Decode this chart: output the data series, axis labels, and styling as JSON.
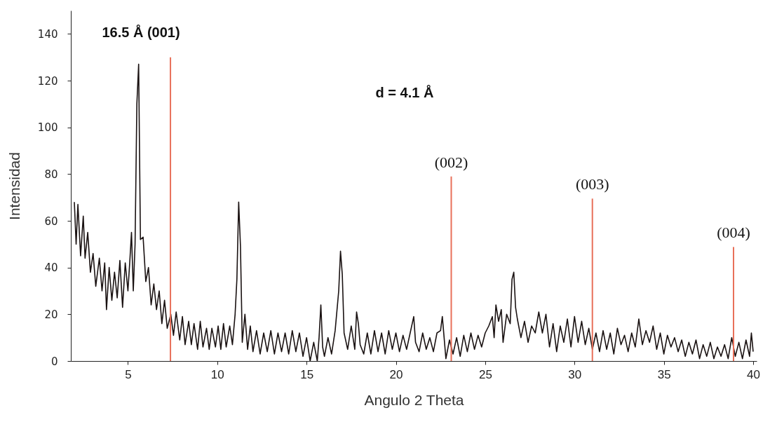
{
  "chart_data": {
    "type": "line",
    "xlabel": "Angulo 2 Theta",
    "ylabel": "Intensidad",
    "xlim": [
      2,
      40
    ],
    "xticks": [
      5,
      10,
      15,
      20,
      25,
      30,
      35,
      40
    ],
    "ylim": [
      0,
      150
    ],
    "yticks": [
      0,
      20,
      40,
      60,
      80,
      100,
      120,
      140
    ],
    "grid": false,
    "series": [
      {
        "color": "#1a1212",
        "x": [
          2.0,
          2.1,
          2.2,
          2.35,
          2.5,
          2.6,
          2.75,
          2.9,
          3.05,
          3.2,
          3.4,
          3.55,
          3.7,
          3.8,
          3.95,
          4.1,
          4.25,
          4.4,
          4.55,
          4.7,
          4.85,
          5.0,
          5.1,
          5.2,
          5.3,
          5.4,
          5.5,
          5.6,
          5.7,
          5.85,
          6.0,
          6.15,
          6.3,
          6.45,
          6.6,
          6.75,
          6.9,
          7.05,
          7.2,
          7.4,
          7.55,
          7.7,
          7.9,
          8.05,
          8.2,
          8.4,
          8.55,
          8.7,
          8.9,
          9.05,
          9.2,
          9.4,
          9.55,
          9.7,
          9.9,
          10.05,
          10.2,
          10.35,
          10.5,
          10.7,
          10.85,
          11.0,
          11.1,
          11.2,
          11.3,
          11.4,
          11.55,
          11.7,
          11.85,
          12.0,
          12.2,
          12.4,
          12.6,
          12.8,
          13.0,
          13.2,
          13.4,
          13.6,
          13.8,
          14.0,
          14.2,
          14.4,
          14.6,
          14.8,
          15.0,
          15.2,
          15.4,
          15.6,
          15.7,
          15.8,
          15.9,
          16.0,
          16.2,
          16.4,
          16.6,
          16.8,
          16.9,
          17.0,
          17.1,
          17.3,
          17.5,
          17.7,
          17.8,
          17.9,
          18.0,
          18.2,
          18.4,
          18.6,
          18.8,
          19.0,
          19.2,
          19.4,
          19.6,
          19.8,
          20.0,
          20.2,
          20.4,
          20.6,
          20.8,
          21.0,
          21.1,
          21.3,
          21.5,
          21.7,
          21.9,
          22.1,
          22.3,
          22.5,
          22.6,
          22.7,
          22.8,
          23.0,
          23.2,
          23.4,
          23.6,
          23.8,
          24.0,
          24.2,
          24.4,
          24.6,
          24.8,
          25.0,
          25.2,
          25.4,
          25.5,
          25.6,
          25.75,
          25.9,
          26.0,
          26.2,
          26.4,
          26.5,
          26.6,
          26.7,
          26.8,
          27.0,
          27.2,
          27.4,
          27.6,
          27.8,
          28.0,
          28.2,
          28.4,
          28.6,
          28.8,
          29.0,
          29.2,
          29.4,
          29.6,
          29.8,
          30.0,
          30.2,
          30.4,
          30.6,
          30.8,
          31.0,
          31.2,
          31.4,
          31.6,
          31.8,
          32.0,
          32.2,
          32.4,
          32.6,
          32.8,
          33.0,
          33.2,
          33.4,
          33.6,
          33.8,
          34.0,
          34.2,
          34.4,
          34.6,
          34.8,
          35.0,
          35.2,
          35.4,
          35.6,
          35.8,
          36.0,
          36.2,
          36.4,
          36.6,
          36.8,
          37.0,
          37.2,
          37.4,
          37.6,
          37.8,
          38.0,
          38.2,
          38.4,
          38.6,
          38.8,
          39.0,
          39.2,
          39.4,
          39.6,
          39.8,
          39.9,
          40.0
        ],
        "values": [
          68,
          50,
          67,
          45,
          62,
          44,
          55,
          38,
          46,
          32,
          44,
          30,
          42,
          22,
          40,
          26,
          38,
          27,
          43,
          23,
          42,
          30,
          42,
          55,
          30,
          50,
          110,
          127,
          52,
          53,
          34,
          40,
          24,
          33,
          22,
          30,
          16,
          26,
          14,
          20,
          11,
          21,
          9,
          19,
          7,
          17,
          7,
          16,
          5,
          17,
          6,
          14,
          5,
          14,
          6,
          15,
          5,
          16,
          6,
          15,
          7,
          20,
          35,
          68,
          49,
          8,
          20,
          5,
          15,
          4,
          13,
          3,
          12,
          4,
          13,
          3,
          12,
          4,
          12,
          3,
          13,
          4,
          12,
          2,
          10,
          0,
          8,
          0,
          10,
          24,
          6,
          2,
          10,
          3,
          13,
          30,
          47,
          37,
          12,
          5,
          15,
          5,
          21,
          16,
          7,
          3,
          12,
          3,
          13,
          4,
          12,
          3,
          13,
          5,
          12,
          4,
          11,
          5,
          12,
          19,
          8,
          4,
          12,
          5,
          10,
          4,
          12,
          13,
          19,
          10,
          1,
          9,
          3,
          10,
          2,
          11,
          4,
          12,
          5,
          11,
          6,
          12,
          15,
          19,
          10,
          24,
          17,
          22,
          8,
          20,
          16,
          35,
          38,
          23,
          18,
          10,
          17,
          8,
          15,
          12,
          21,
          12,
          20,
          6,
          16,
          4,
          15,
          8,
          18,
          6,
          19,
          8,
          17,
          7,
          14,
          5,
          12,
          4,
          13,
          5,
          12,
          3,
          14,
          7,
          11,
          4,
          12,
          6,
          18,
          7,
          13,
          8,
          15,
          5,
          12,
          3,
          11,
          6,
          10,
          4,
          9,
          2,
          8,
          3,
          9,
          1,
          7,
          2,
          8,
          1,
          6,
          2,
          7,
          1,
          10,
          2,
          8,
          1,
          9,
          2,
          12,
          4
        ]
      },
      {
        "type": "bar",
        "color": "#e8705a",
        "x": [
          7.38,
          23.1,
          31.0,
          38.9
        ],
        "values": [
          130,
          79,
          69.5,
          48.8
        ]
      }
    ],
    "annotations": [
      "16.5 Å (001)",
      "d = 4.1 Å",
      {
        "text": "(002)",
        "x": 23.1,
        "y": 79
      },
      {
        "text": "(003)",
        "x": 31.0,
        "y": 69.5
      },
      {
        "text": "(004)",
        "x": 38.9,
        "y": 48.8
      }
    ]
  }
}
